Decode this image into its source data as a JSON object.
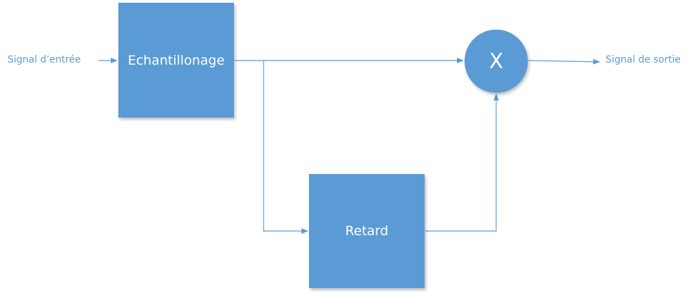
{
  "diagram": {
    "input_label": "Signal d’entrée",
    "output_label": "Signal de sortie",
    "sampling_block_label": "Echantillonage",
    "delay_block_label": "Retard",
    "multiplier_symbol": "X"
  },
  "colors": {
    "block_fill": "#5b9bd5",
    "block_text": "#ffffff",
    "connector": "#5b9bd5",
    "label_text": "#5b9bd5"
  }
}
